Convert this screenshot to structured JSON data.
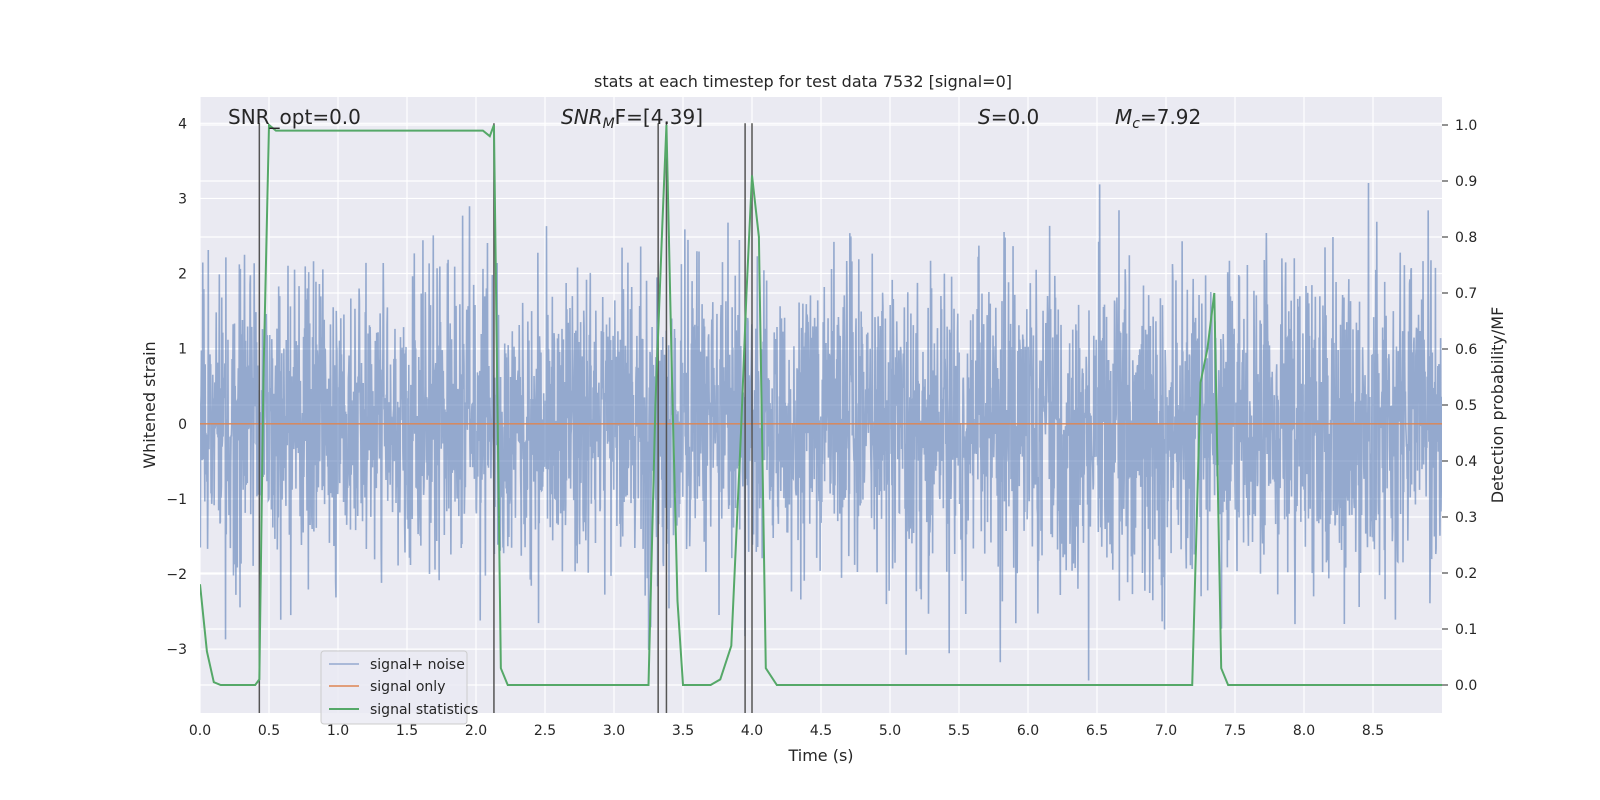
{
  "chart_data": {
    "type": "line",
    "title": "stats at each timestep for test data 7532 [signal=0]",
    "xlabel": "Time (s)",
    "ylabel_left": "Whitened strain",
    "ylabel_right": "Detection probability/MF",
    "xlim": [
      0,
      9
    ],
    "ylim_left": [
      -3.85,
      4.35
    ],
    "ylim_right": [
      -0.05,
      1.05
    ],
    "xticks": [
      0.0,
      0.5,
      1.0,
      1.5,
      2.0,
      2.5,
      3.0,
      3.5,
      4.0,
      4.5,
      5.0,
      5.5,
      6.0,
      6.5,
      7.0,
      7.5,
      8.0,
      8.5
    ],
    "xtick_labels": [
      "0.0",
      "0.5",
      "1.0",
      "1.5",
      "2.0",
      "2.5",
      "3.0",
      "3.5",
      "4.0",
      "4.5",
      "5.0",
      "5.5",
      "6.0",
      "6.5",
      "7.0",
      "7.5",
      "8.0",
      "8.5"
    ],
    "yticks_left": [
      -3,
      -2,
      -1,
      0,
      1,
      2,
      3,
      4
    ],
    "ytick_labels_left": [
      "−3",
      "−2",
      "−1",
      "0",
      "1",
      "2",
      "3",
      "4"
    ],
    "yticks_right": [
      0.0,
      0.1,
      0.2,
      0.3,
      0.4,
      0.5,
      0.6,
      0.7,
      0.8,
      0.9,
      1.0
    ],
    "ytick_labels_right": [
      "0.0",
      "0.1",
      "0.2",
      "0.3",
      "0.4",
      "0.5",
      "0.6",
      "0.7",
      "0.8",
      "0.9",
      "1.0"
    ],
    "grid": true,
    "legend_position": "lower-left",
    "annotations": {
      "snr_opt": "SNR_opt=0.0",
      "snr_mf_base": "SNR",
      "snr_mf_sub": "M",
      "snr_mf_rest": "F=[4.39]",
      "s_italic": "S",
      "s_rest": "=0.0",
      "mc_base": "M",
      "mc_sub": "c",
      "mc_rest": "=7.92"
    },
    "series": [
      {
        "name": "signal+ noise",
        "color": "#4c72b0",
        "noise": {
          "samples": 3600,
          "std": 1.0,
          "range": [
            -3.5,
            4.0
          ]
        }
      },
      {
        "name": "signal only",
        "color": "#dd8452",
        "x": [
          0,
          9
        ],
        "y": [
          0,
          0
        ]
      },
      {
        "name": "signal statistics",
        "color": "#55a868",
        "axis": "right",
        "x": [
          0.0,
          0.05,
          0.1,
          0.15,
          0.2,
          0.25,
          0.3,
          0.35,
          0.4,
          0.43,
          0.46,
          0.5,
          0.55,
          0.6,
          2.0,
          2.05,
          2.1,
          2.13,
          2.18,
          2.23,
          2.3,
          3.0,
          3.25,
          3.3,
          3.35,
          3.38,
          3.42,
          3.46,
          3.5,
          3.55,
          3.6,
          3.7,
          3.77,
          3.85,
          3.92,
          3.96,
          4.0,
          4.05,
          4.1,
          4.18,
          4.3,
          7.0,
          7.19,
          7.25,
          7.3,
          7.35,
          7.4,
          7.45,
          7.55,
          9.0
        ],
        "y": [
          0.18,
          0.06,
          0.005,
          0.0,
          0.0,
          0.0,
          0.0,
          0.0,
          0.0,
          0.01,
          0.55,
          1.0,
          0.99,
          0.99,
          0.99,
          0.99,
          0.98,
          1.0,
          0.03,
          0.0,
          0.0,
          0.0,
          0.0,
          0.5,
          0.82,
          1.0,
          0.55,
          0.15,
          0.0,
          0.0,
          0.0,
          0.0,
          0.01,
          0.07,
          0.45,
          0.7,
          0.91,
          0.8,
          0.03,
          0.0,
          0.0,
          0.0,
          0.0,
          0.54,
          0.6,
          0.7,
          0.03,
          0.0,
          0.0,
          0.0
        ]
      }
    ],
    "vertical_lines_x": [
      0.43,
      2.13,
      3.32,
      3.38,
      3.95,
      4.0
    ],
    "vertical_lines_top": 4.0
  }
}
